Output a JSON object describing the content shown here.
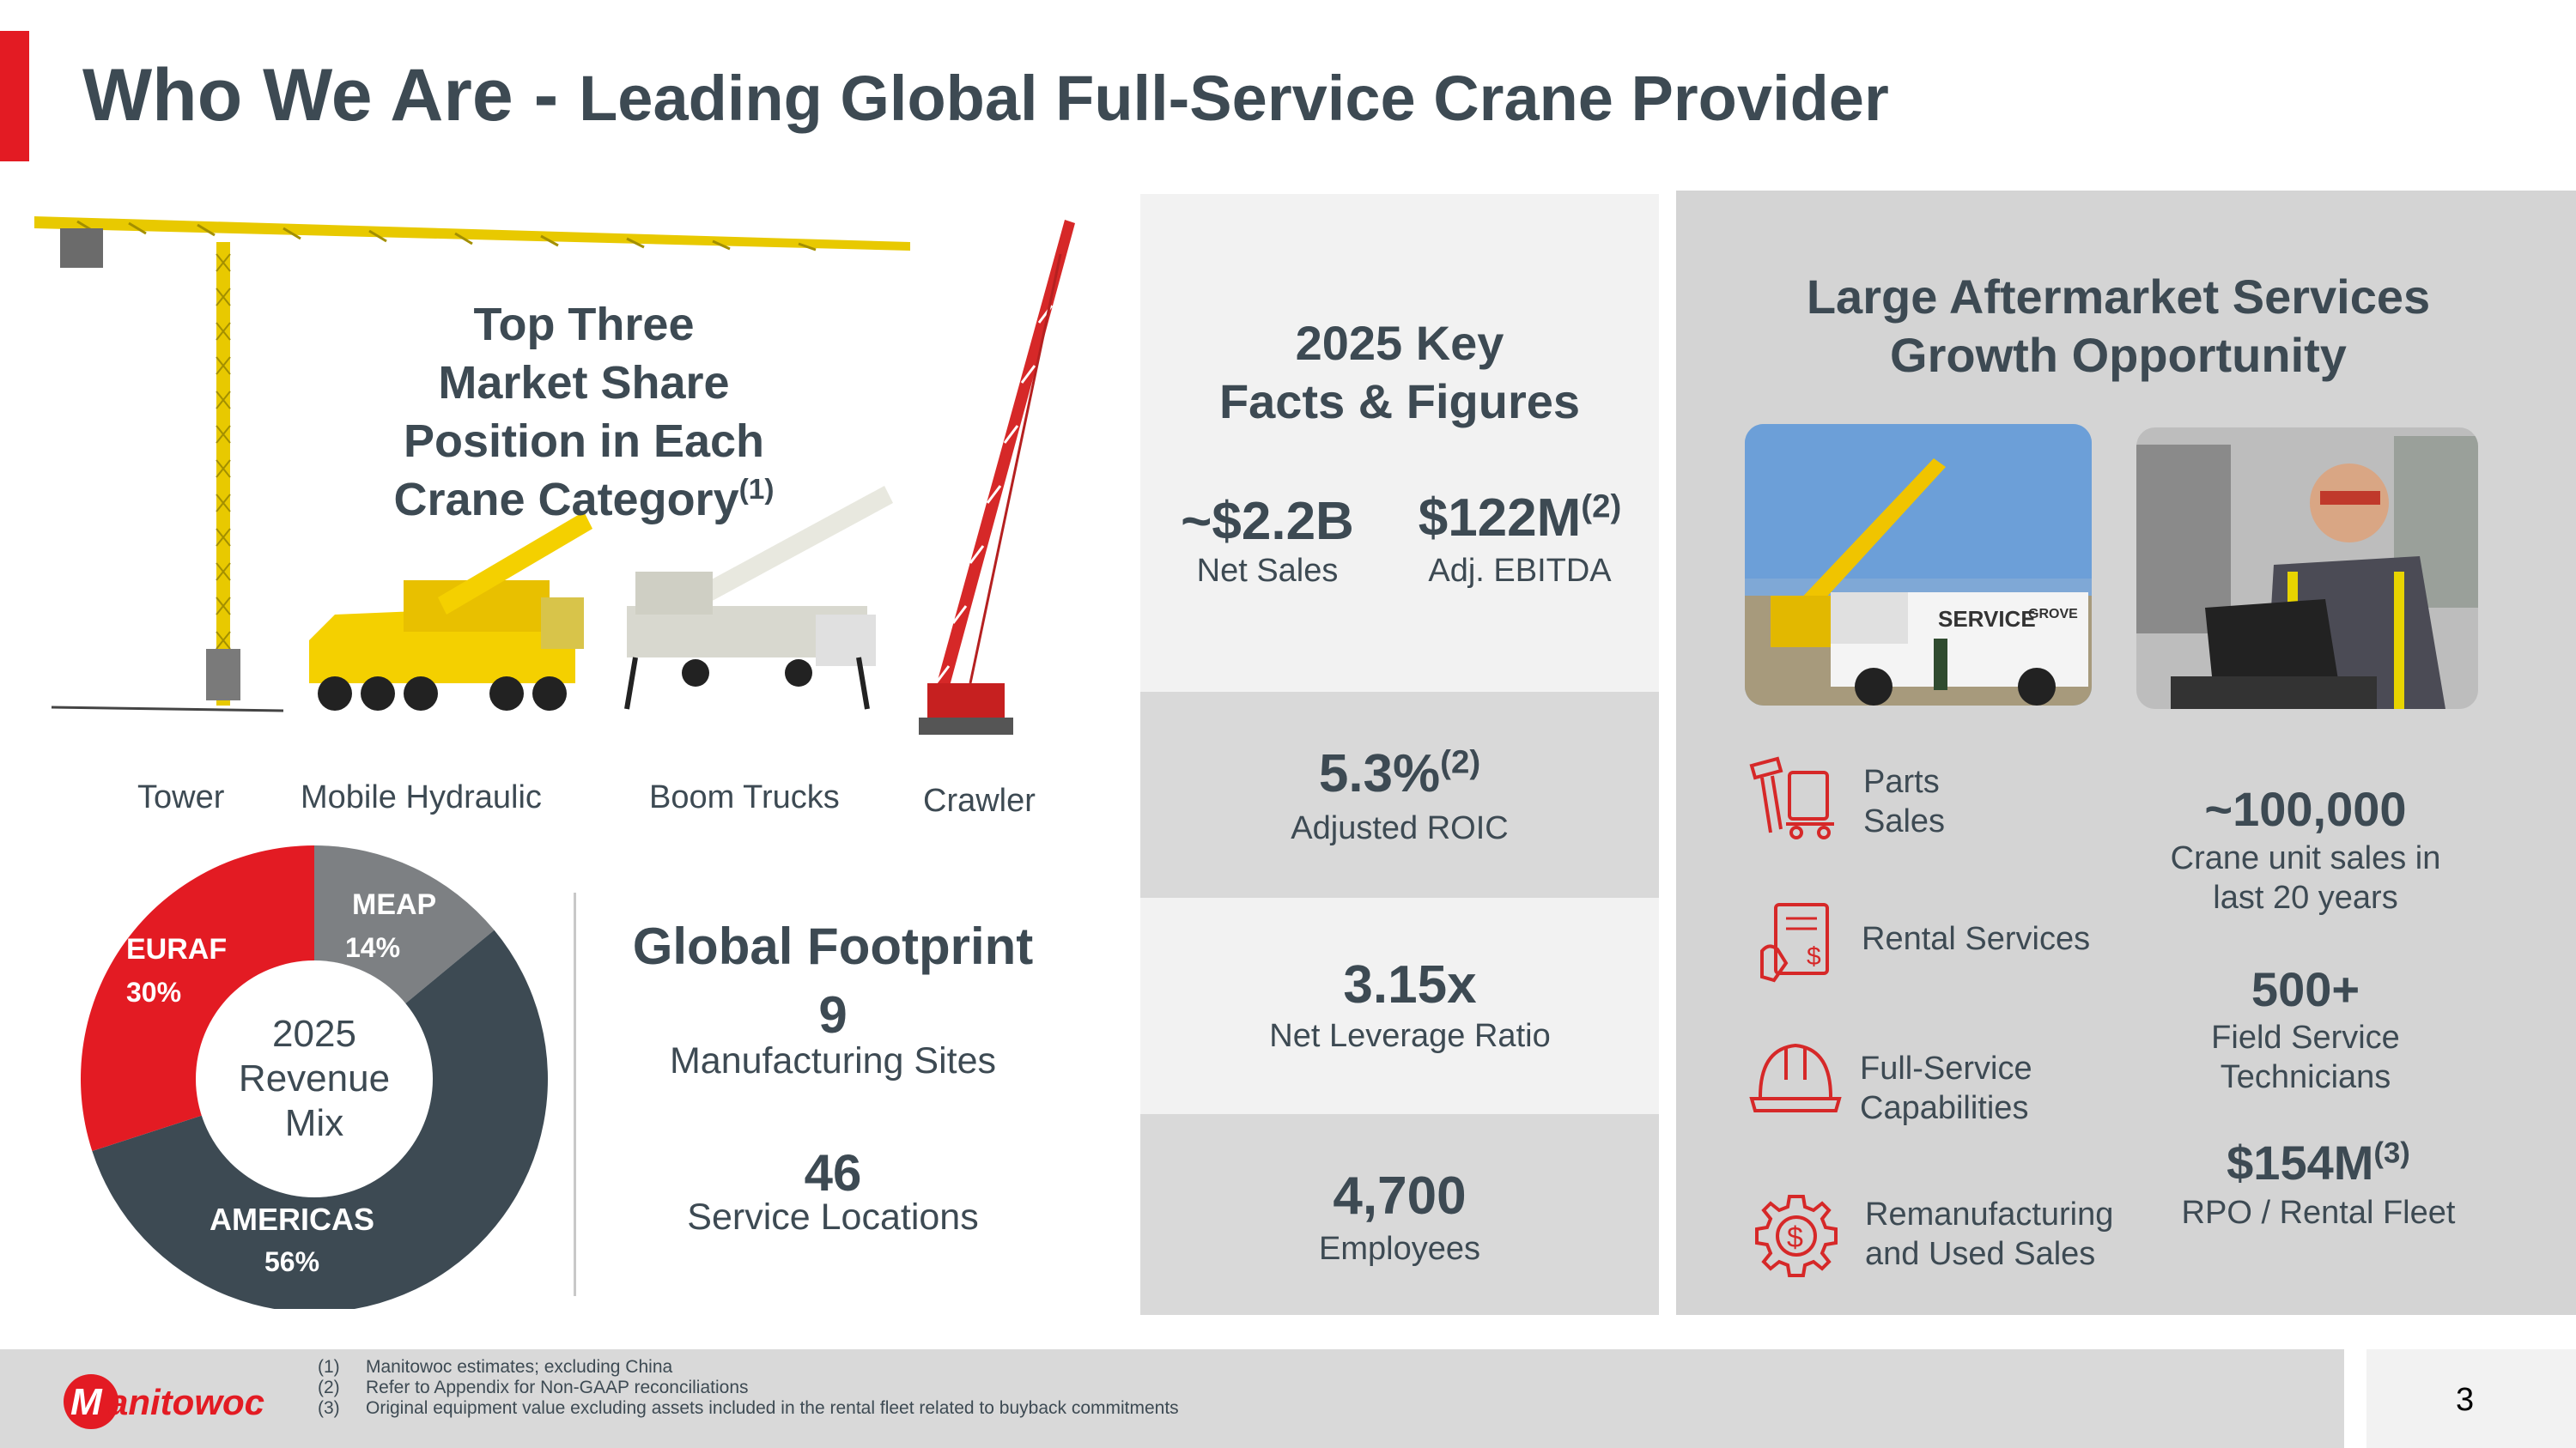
{
  "header": {
    "title_main": "Who We Are - ",
    "title_sub": "Leading Global Full-Service Crane Provider"
  },
  "market": {
    "title_lines": [
      "Top Three",
      "Market Share",
      "Position in Each",
      "Crane Category"
    ],
    "title_sup": "(1)",
    "categories": [
      "Tower",
      "Mobile Hydraulic",
      "Boom Trucks",
      "Crawler"
    ]
  },
  "revenue_mix": {
    "center_lines": [
      "2025",
      "Revenue",
      "Mix"
    ],
    "segments": [
      {
        "name": "MEAP",
        "pct": "14%",
        "value": 14,
        "color": "#7d8083"
      },
      {
        "name": "AMERICAS",
        "pct": "56%",
        "value": 56,
        "color": "#3d4a53"
      },
      {
        "name": "EURAF",
        "pct": "30%",
        "value": 30,
        "color": "#e31b23"
      }
    ]
  },
  "footprint": {
    "title": "Global Footprint",
    "sites_num": "9",
    "sites_label": "Manufacturing Sites",
    "service_num": "46",
    "service_label": "Service Locations"
  },
  "key_facts": {
    "title_lines": [
      "2025 Key",
      "Facts & Figures"
    ],
    "net_sales_value": "~$2.2B",
    "net_sales_label": "Net Sales",
    "ebitda_value": "$122M",
    "ebitda_sup": "(2)",
    "ebitda_label": "Adj. EBITDA",
    "roic_value": "5.3%",
    "roic_sup": "(2)",
    "roic_label": "Adjusted ROIC",
    "leverage_value": "3.15x",
    "leverage_label": "Net Leverage Ratio",
    "employees_value": "4,700",
    "employees_label": "Employees"
  },
  "aftermarket": {
    "title_lines": [
      "Large Aftermarket Services",
      "Growth Opportunity"
    ],
    "truck_text": "SERVICE",
    "truck_brand": "GROVE",
    "services": [
      {
        "lines": [
          "Parts",
          "Sales"
        ],
        "icon": "parts-icon"
      },
      {
        "lines": [
          "Rental Services"
        ],
        "icon": "rental-icon"
      },
      {
        "lines": [
          "Full-Service",
          "Capabilities"
        ],
        "icon": "hardhat-icon"
      },
      {
        "lines": [
          "Remanufacturing",
          "and Used Sales"
        ],
        "icon": "gear-dollar-icon"
      }
    ],
    "stats": [
      {
        "value": "~100,000",
        "sup": "",
        "lines": [
          "Crane unit sales in",
          "last 20 years"
        ]
      },
      {
        "value": "500+",
        "sup": "",
        "lines": [
          "Field Service",
          "Technicians"
        ]
      },
      {
        "value": "$154M",
        "sup": "(3)",
        "lines": [
          "RPO / Rental Fleet"
        ]
      }
    ]
  },
  "footer": {
    "logo_text": "Manitowoc",
    "footnotes": [
      {
        "n": "(1)",
        "text": "Manitowoc estimates; excluding China"
      },
      {
        "n": "(2)",
        "text": "Refer to Appendix for Non-GAAP reconciliations"
      },
      {
        "n": "(3)",
        "text": "Original equipment value excluding assets included in the rental fleet related to buyback commitments"
      }
    ],
    "page_number": "3"
  },
  "colors": {
    "red": "#e31b23",
    "slate": "#3d4a53",
    "grey": "#7d8083",
    "yellow": "#f4d000"
  }
}
